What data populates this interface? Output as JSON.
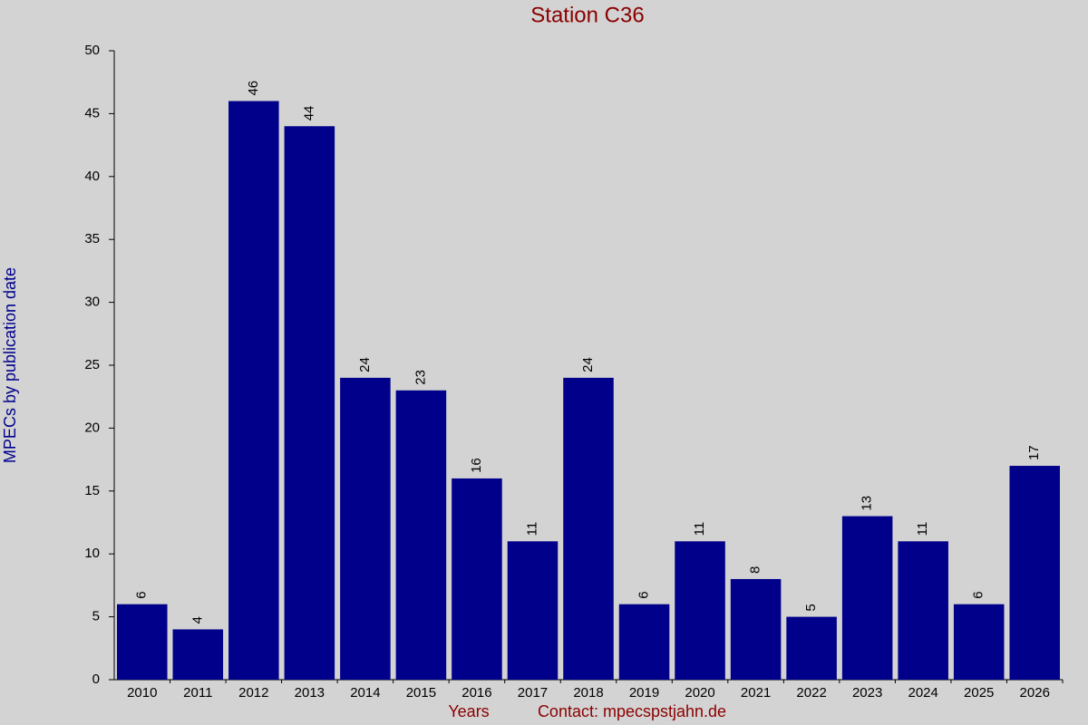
{
  "chart_data": {
    "type": "bar",
    "title": "Station C36",
    "x_label": "Years",
    "contact": "Contact: mpecspstjahn.de",
    "y_label": "MPECs by publication date",
    "categories": [
      "2010",
      "2011",
      "2012",
      "2013",
      "2014",
      "2015",
      "2016",
      "2017",
      "2018",
      "2019",
      "2020",
      "2021",
      "2022",
      "2023",
      "2024",
      "2025",
      "2026"
    ],
    "values": [
      6,
      4,
      46,
      44,
      24,
      23,
      16,
      11,
      24,
      6,
      11,
      8,
      5,
      13,
      11,
      6,
      17
    ],
    "color": "#00008b",
    "ylim": [
      0,
      50
    ],
    "yticks": [
      0,
      5,
      10,
      15,
      20,
      25,
      30,
      35,
      40,
      45,
      50
    ]
  }
}
